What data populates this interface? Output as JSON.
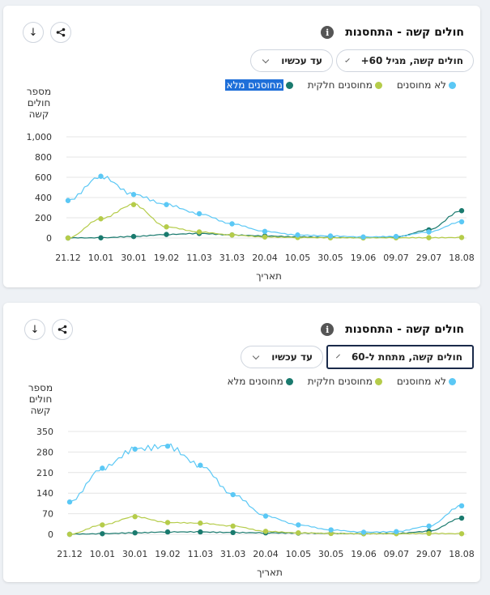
{
  "colors": {
    "unvaccinated": "#5bc8f5",
    "partial": "#b5cc4a",
    "full": "#1a7a6e",
    "grid": "#e4e4e4"
  },
  "charts": [
    {
      "title": "חולים קשה - התחסנות",
      "info_icon": "i",
      "download_icon": "↓",
      "share_icon": "share-icon",
      "age_select": "חולים קשה, מגיל 60+",
      "range_select": "עד עכשיו",
      "legend": [
        "לא מחוסנים",
        "מחוסנים חלקית",
        "מחוסנים מלא"
      ],
      "ylabel": [
        "מספר",
        "חולים",
        "קשה"
      ],
      "xlabel": "תאריך"
    },
    {
      "title": "חולים קשה - התחסנות",
      "info_icon": "i",
      "download_icon": "↓",
      "share_icon": "share-icon",
      "age_select": "חולים קשה, מתחת ל-60",
      "range_select": "עד עכשיו",
      "legend": [
        "לא מחוסנים",
        "מחוסנים חלקית",
        "מחוסנים מלא"
      ],
      "ylabel": [
        "מספר",
        "חולים",
        "קשה"
      ],
      "xlabel": "תאריך"
    }
  ],
  "chart_data": [
    {
      "type": "line",
      "title": "חולים קשה - התחסנות",
      "xlabel": "תאריך",
      "ylabel": "מספר חולים קשה",
      "x": [
        "21.12",
        "10.01",
        "30.01",
        "19.02",
        "11.03",
        "31.03",
        "20.04",
        "10.05",
        "30.05",
        "19.06",
        "09.07",
        "29.07",
        "18.08"
      ],
      "ylim": [
        0,
        1000
      ],
      "yticks": [
        0,
        200,
        400,
        600,
        800,
        1000
      ],
      "ytick_labels": [
        "0",
        "200",
        "400",
        "600",
        "800",
        "1,000"
      ],
      "grid": true,
      "legend_position": "top-right",
      "series": [
        {
          "name": "לא מחוסנים",
          "values": [
            370,
            610,
            430,
            330,
            240,
            140,
            65,
            30,
            20,
            10,
            15,
            60,
            160
          ]
        },
        {
          "name": "מחוסנים חלקית",
          "values": [
            0,
            190,
            330,
            110,
            60,
            30,
            10,
            5,
            2,
            1,
            2,
            3,
            5
          ]
        },
        {
          "name": "מחוסנים מלא",
          "values": [
            0,
            2,
            15,
            35,
            45,
            30,
            20,
            12,
            5,
            3,
            10,
            80,
            270
          ]
        }
      ]
    },
    {
      "type": "line",
      "title": "חולים קשה - התחסנות",
      "xlabel": "תאריך",
      "ylabel": "מספר חולים קשה",
      "x": [
        "21.12",
        "10.01",
        "30.01",
        "19.02",
        "11.03",
        "31.03",
        "20.04",
        "10.05",
        "30.05",
        "19.06",
        "09.07",
        "29.07",
        "18.08"
      ],
      "ylim": [
        0,
        350
      ],
      "yticks": [
        0,
        70,
        140,
        210,
        280,
        350
      ],
      "ytick_labels": [
        "0",
        "70",
        "140",
        "210",
        "280",
        "350"
      ],
      "grid": true,
      "legend_position": "top-right",
      "series": [
        {
          "name": "לא מחוסנים",
          "values": [
            110,
            225,
            290,
            300,
            235,
            135,
            62,
            32,
            15,
            7,
            9,
            28,
            97
          ]
        },
        {
          "name": "מחוסנים חלקית",
          "values": [
            0,
            32,
            60,
            40,
            38,
            28,
            10,
            5,
            3,
            2,
            2,
            3,
            2
          ]
        },
        {
          "name": "מחוסנים מלא",
          "values": [
            0,
            2,
            5,
            8,
            8,
            6,
            5,
            4,
            3,
            2,
            3,
            10,
            55
          ]
        }
      ]
    }
  ]
}
